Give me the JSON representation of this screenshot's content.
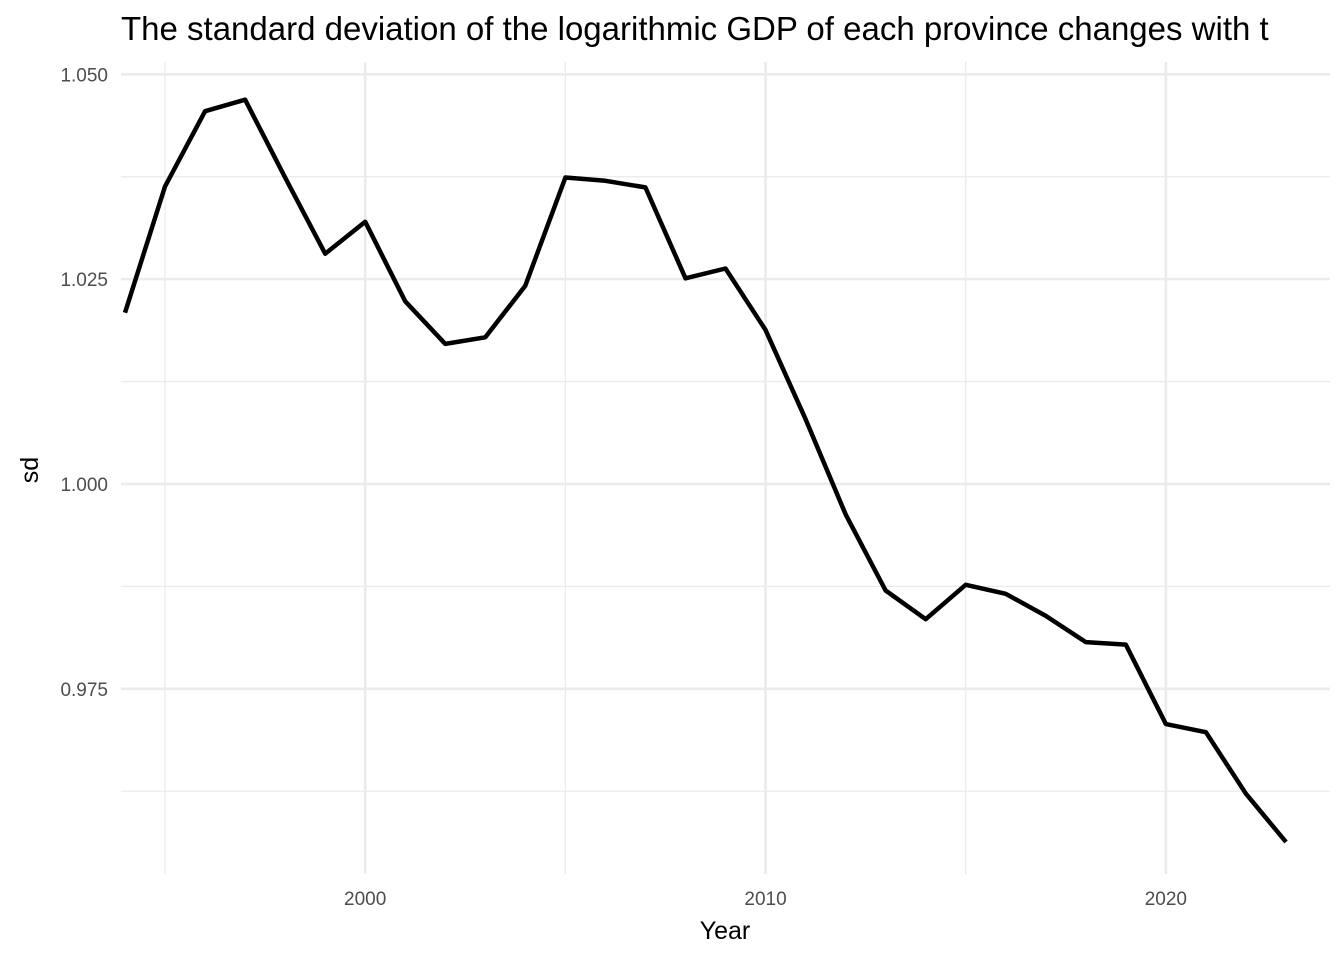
{
  "chart_data": {
    "type": "line",
    "title": "The standard deviation of the logarithmic GDP of each province changes with t",
    "xlabel": "Year",
    "ylabel": "sd",
    "xlim": [
      1993.9,
      2024.1
    ],
    "ylim": [
      0.9524,
      1.0515
    ],
    "x_ticks": [
      {
        "value": 2000,
        "label": "2000"
      },
      {
        "value": 2010,
        "label": "2010"
      },
      {
        "value": 2020,
        "label": "2020"
      }
    ],
    "x_minor_ticks": [
      1995,
      2005,
      2015
    ],
    "y_ticks": [
      {
        "value": 0.975,
        "label": "0.975"
      },
      {
        "value": 1.0,
        "label": "1.000"
      },
      {
        "value": 1.025,
        "label": "1.025"
      },
      {
        "value": 1.05,
        "label": "1.050"
      }
    ],
    "y_minor_ticks": [
      0.9625,
      0.9875,
      1.0125,
      1.0375
    ],
    "grid": true,
    "legend": "none",
    "line_color": "#000000",
    "series": [
      {
        "x": [
          1994,
          1995,
          1996,
          1997,
          1998,
          1999,
          2000,
          2001,
          2002,
          2003,
          2004,
          2005,
          2006,
          2007,
          2008,
          2009,
          2010,
          2011,
          2012,
          2013,
          2014,
          2015,
          2016,
          2017,
          2018,
          2019,
          2020,
          2021,
          2022,
          2023
        ],
        "values": [
          1.0209,
          1.0363,
          1.0455,
          1.0469,
          1.0374,
          1.0281,
          1.032,
          1.0223,
          1.0171,
          1.0179,
          1.0242,
          1.0374,
          1.037,
          1.0362,
          1.0251,
          1.0263,
          1.0188,
          1.0079,
          0.9963,
          0.987,
          0.9835,
          0.9877,
          0.9866,
          0.9839,
          0.9807,
          0.9804,
          0.9707,
          0.9697,
          0.9622,
          0.9563
        ]
      }
    ]
  }
}
